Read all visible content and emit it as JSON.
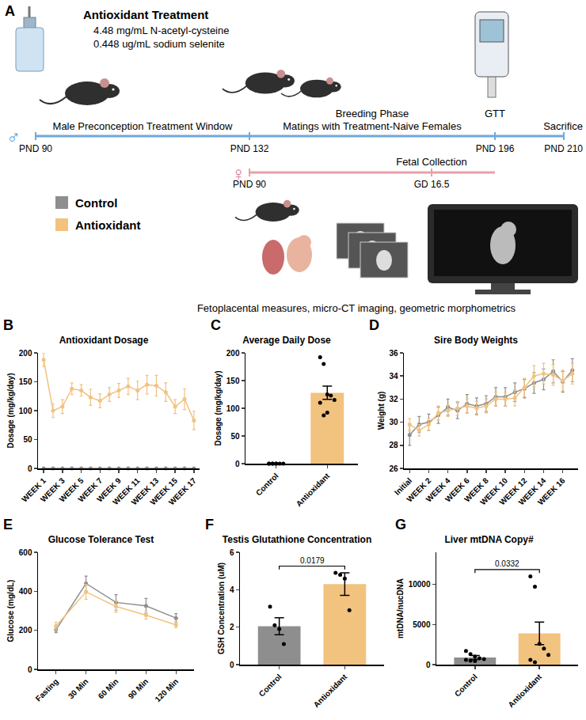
{
  "diagram": {
    "panel": "A",
    "treatment": {
      "title": "Antioxidant Treatment",
      "lines": [
        "4.48 mg/mL N-acetyl-cysteine",
        "0.448 ug/mL sodium selenite"
      ]
    },
    "male_timeline": {
      "symbol": "♂",
      "label": "Male Preconception Treatment Window",
      "phase": [
        "Breeding Phase",
        "Matings with Treatment-Naive Females"
      ],
      "ticks": [
        "PND 90",
        "PND 132",
        "PND 196",
        "PND 210"
      ],
      "events": [
        "GTT",
        "Sacrifice"
      ]
    },
    "female_timeline": {
      "symbol": "♀",
      "start": "PND 90",
      "end": "GD 16.5",
      "event": "Fetal Collection"
    },
    "legend": [
      {
        "name": "Control",
        "color": "#8e8e8e"
      },
      {
        "name": "Antioxidant",
        "color": "#f2c27f"
      }
    ],
    "caption": "Fetoplacental measures, micro-CT imaging, geometric morphometrics"
  },
  "chart_data": [
    {
      "panel": "B",
      "type": "line",
      "title": "Antioxidant Dosage",
      "y_label": "Dosage (mg/kg/day)",
      "marker": "circle",
      "categories": [
        "WEEK 1",
        null,
        "WEEK 3",
        null,
        "WEEK 5",
        null,
        "WEEK 7",
        null,
        "WEEK 9",
        null,
        "WEEK 11",
        null,
        "WEEK 13",
        null,
        "WEEK 15",
        null,
        "WEEK 17"
      ],
      "series": [
        {
          "name": "Control",
          "color": "#8e8e8e",
          "values": [
            0,
            0,
            0,
            0,
            0,
            0,
            0,
            0,
            0,
            0,
            0,
            0,
            0,
            0,
            0,
            0,
            0
          ]
        },
        {
          "name": "Antioxidant",
          "color": "#f2c27f",
          "values": [
            188,
            100,
            107,
            138,
            135,
            123,
            117,
            128,
            135,
            142,
            135,
            145,
            143,
            132,
            107,
            120,
            83
          ],
          "errors": [
            12,
            12,
            12,
            10,
            10,
            14,
            12,
            12,
            12,
            14,
            16,
            16,
            18,
            16,
            12,
            18,
            16
          ]
        }
      ],
      "ylim": [
        0,
        200
      ],
      "yticks": [
        0,
        50,
        100,
        150,
        200
      ],
      "grid": false
    },
    {
      "panel": "C",
      "type": "bar",
      "title": "Average Daily Dose",
      "y_label": "Dosage (mg/kg/day)",
      "categories": [
        "Control",
        "Antioxidant"
      ],
      "values": [
        0,
        128
      ],
      "errors": [
        0,
        12
      ],
      "colors": [
        "#8e8e8e",
        "#f2c27f"
      ],
      "points": [
        [
          0,
          0,
          0,
          0,
          0,
          0,
          0,
          0
        ],
        [
          192,
          180,
          125,
          123,
          115,
          110,
          87,
          92
        ]
      ],
      "ylim": [
        0,
        200
      ],
      "yticks": [
        0,
        50,
        100,
        150,
        200
      ],
      "grid": false
    },
    {
      "panel": "D",
      "type": "line",
      "title": "Sire Body Weights",
      "y_label": "Weight (g)",
      "marker": "circle",
      "categories": [
        "Initial",
        null,
        "WEEK 2",
        null,
        "WEEK 4",
        null,
        "WEEK 6",
        null,
        "WEEK 8",
        null,
        "WEEK 10",
        null,
        "WEEK 12",
        null,
        "WEEK 14",
        null,
        "WEEK 16",
        null
      ],
      "series": [
        {
          "name": "Control",
          "color": "#8e8e8e",
          "values": [
            28.9,
            29.8,
            30.0,
            30.6,
            31.3,
            31.0,
            31.6,
            31.4,
            31.6,
            32.2,
            32.2,
            32.6,
            32.9,
            33.4,
            33.7,
            34.4,
            33.5,
            34.5
          ],
          "errors": [
            0.9,
            0.7,
            0.7,
            0.7,
            0.7,
            0.7,
            0.8,
            0.7,
            0.7,
            0.8,
            0.8,
            0.8,
            0.8,
            0.9,
            0.9,
            1.0,
            0.9,
            1.0
          ]
        },
        {
          "name": "Antioxidant",
          "color": "#f2c27f",
          "values": [
            29.8,
            29.3,
            29.8,
            30.8,
            31.0,
            31.2,
            31.4,
            31.2,
            31.4,
            32.0,
            32.0,
            32.1,
            33.0,
            34.0,
            34.2,
            34.1,
            33.6,
            34.2
          ],
          "errors": [
            0.5,
            0.5,
            0.5,
            0.6,
            0.5,
            0.6,
            0.6,
            0.6,
            0.6,
            0.6,
            0.6,
            0.7,
            0.8,
            0.9,
            0.9,
            0.9,
            0.9,
            0.9
          ]
        }
      ],
      "ylim": [
        26,
        36
      ],
      "yticks": [
        26,
        28,
        30,
        32,
        34,
        36
      ],
      "grid": false
    },
    {
      "panel": "E",
      "type": "line",
      "title": "Glucose Tolerance Test",
      "y_label": "Glucose (mg/dL)",
      "marker": "circle",
      "categories": [
        "Fasting",
        "30 Min",
        "60 Min",
        "90 Min",
        "120 Min"
      ],
      "series": [
        {
          "name": "Control",
          "color": "#8e8e8e",
          "values": [
            203,
            440,
            343,
            325,
            263
          ],
          "errors": [
            15,
            38,
            40,
            38,
            22
          ]
        },
        {
          "name": "Antioxidant",
          "color": "#f2c27f",
          "values": [
            222,
            397,
            322,
            278,
            228
          ],
          "errors": [
            20,
            38,
            30,
            20,
            15
          ]
        }
      ],
      "ylim": [
        0,
        600
      ],
      "yticks": [
        0,
        200,
        400,
        600
      ],
      "grid": false
    },
    {
      "panel": "F",
      "type": "bar",
      "title": "Testis Glutathione Concentration",
      "y_label": "GSH Concentration (uM)",
      "categories": [
        "Control",
        "Antioxidant"
      ],
      "values": [
        2.05,
        4.3
      ],
      "errors": [
        0.45,
        0.6
      ],
      "colors": [
        "#8e8e8e",
        "#f2c27f"
      ],
      "points": [
        [
          3.1,
          2.1,
          1.9,
          1.1
        ],
        [
          4.9,
          4.8,
          4.6,
          2.9
        ]
      ],
      "annotation": "0.0179",
      "ylim": [
        0,
        6
      ],
      "yticks": [
        0,
        2,
        4,
        6
      ],
      "grid": false
    },
    {
      "panel": "G",
      "type": "bar",
      "title": "Liver mtDNA Copy#",
      "y_label": "mtDNA/nucDNA",
      "categories": [
        "Control",
        "Antioxidant"
      ],
      "values": [
        880,
        3900
      ],
      "errors": [
        250,
        1400
      ],
      "colors": [
        "#8e8e8e",
        "#f2c27f"
      ],
      "points": [
        [
          1700,
          1300,
          1000,
          800,
          700,
          600,
          500,
          440
        ],
        [
          11000,
          9700,
          2600,
          2000,
          1200,
          600,
          300
        ]
      ],
      "annotation": "0.0332",
      "ylim": [
        0,
        14000
      ],
      "yticks": [
        0,
        5000,
        10000
      ],
      "grid": false
    }
  ]
}
